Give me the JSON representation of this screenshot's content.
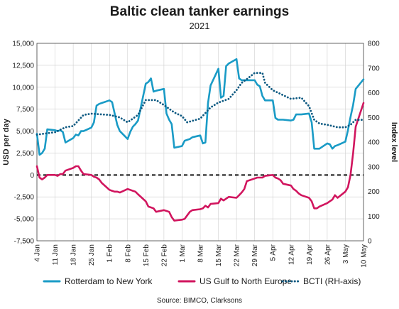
{
  "chart_data": {
    "type": "line",
    "title": "Baltic clean tanker earnings",
    "subtitle": "2021",
    "ylabel_left": "USD per day",
    "ylabel_right": "Index level",
    "ylim_left": [
      -7500,
      15000
    ],
    "yticks_left": [
      -7500,
      -5000,
      -2500,
      0,
      2500,
      5000,
      7500,
      10000,
      12500,
      15000
    ],
    "yticks_left_labels": [
      "-7,500",
      "-5,000",
      "-2,500",
      "0",
      "2,500",
      "5,000",
      "7,500",
      "10,000",
      "12,500",
      "15,000"
    ],
    "ylim_right": [
      0,
      800
    ],
    "yticks_right": [
      0,
      100,
      200,
      300,
      400,
      500,
      600,
      700,
      800
    ],
    "yticks_right_labels": [
      "0",
      "100",
      "200",
      "300",
      "400",
      "500",
      "600",
      "700",
      "800"
    ],
    "x_range": [
      "2021-01-04",
      "2021-05-10"
    ],
    "x_ticks": [
      "2021-01-04",
      "2021-01-11",
      "2021-01-18",
      "2021-01-25",
      "2021-02-01",
      "2021-02-08",
      "2021-02-15",
      "2021-02-22",
      "2021-03-01",
      "2021-03-08",
      "2021-03-15",
      "2021-03-22",
      "2021-03-29",
      "2021-04-05",
      "2021-04-12",
      "2021-04-19",
      "2021-04-26",
      "2021-05-03",
      "2021-05-10"
    ],
    "x_tick_labels": [
      "4 Jan",
      "11 Jan",
      "18 Jan",
      "25 Jan",
      "1 Feb",
      "8 Feb",
      "15 Feb",
      "22 Feb",
      "1 Mar",
      "8 Mar",
      "15 Mar",
      "22 Mar",
      "29 Mar",
      "5 Apr",
      "12 Apr",
      "19 Apr",
      "26 Apr",
      "3 May",
      "10 May"
    ],
    "zero_line": "dashed",
    "legend_position": "bottom",
    "source": "Source: BIMCO, Clarksons",
    "series": [
      {
        "name": "Rotterdam to New York",
        "axis": "left",
        "color": "#1a9bc6",
        "style": "solid",
        "points": [
          [
            "2021-01-04",
            4700
          ],
          [
            "2021-01-05",
            2300
          ],
          [
            "2021-01-06",
            2500
          ],
          [
            "2021-01-07",
            3000
          ],
          [
            "2021-01-08",
            5200
          ],
          [
            "2021-01-11",
            5100
          ],
          [
            "2021-01-12",
            5000
          ],
          [
            "2021-01-13",
            5100
          ],
          [
            "2021-01-14",
            4900
          ],
          [
            "2021-01-15",
            3700
          ],
          [
            "2021-01-18",
            4200
          ],
          [
            "2021-01-19",
            4600
          ],
          [
            "2021-01-20",
            4500
          ],
          [
            "2021-01-21",
            5000
          ],
          [
            "2021-01-22",
            5000
          ],
          [
            "2021-01-25",
            5400
          ],
          [
            "2021-01-26",
            6000
          ],
          [
            "2021-01-27",
            7900
          ],
          [
            "2021-01-28",
            8100
          ],
          [
            "2021-01-29",
            8200
          ],
          [
            "2021-02-01",
            8500
          ],
          [
            "2021-02-02",
            8300
          ],
          [
            "2021-02-03",
            7000
          ],
          [
            "2021-02-04",
            5700
          ],
          [
            "2021-02-05",
            5000
          ],
          [
            "2021-02-08",
            4100
          ],
          [
            "2021-02-09",
            4900
          ],
          [
            "2021-02-10",
            5500
          ],
          [
            "2021-02-11",
            5800
          ],
          [
            "2021-02-12",
            6200
          ],
          [
            "2021-02-15",
            10400
          ],
          [
            "2021-02-16",
            10600
          ],
          [
            "2021-02-17",
            11000
          ],
          [
            "2021-02-18",
            9500
          ],
          [
            "2021-02-19",
            9600
          ],
          [
            "2021-02-22",
            9800
          ],
          [
            "2021-02-23",
            7000
          ],
          [
            "2021-02-24",
            6300
          ],
          [
            "2021-02-25",
            5800
          ],
          [
            "2021-02-26",
            3100
          ],
          [
            "2021-03-01",
            3300
          ],
          [
            "2021-03-02",
            3900
          ],
          [
            "2021-03-03",
            4000
          ],
          [
            "2021-03-04",
            4100
          ],
          [
            "2021-03-05",
            4300
          ],
          [
            "2021-03-08",
            4500
          ],
          [
            "2021-03-09",
            3600
          ],
          [
            "2021-03-10",
            3700
          ],
          [
            "2021-03-11",
            8200
          ],
          [
            "2021-03-12",
            10200
          ],
          [
            "2021-03-15",
            12100
          ],
          [
            "2021-03-16",
            8800
          ],
          [
            "2021-03-17",
            9000
          ],
          [
            "2021-03-18",
            12400
          ],
          [
            "2021-03-19",
            12700
          ],
          [
            "2021-03-22",
            13200
          ],
          [
            "2021-03-23",
            11000
          ],
          [
            "2021-03-24",
            10800
          ],
          [
            "2021-03-25",
            10800
          ],
          [
            "2021-03-26",
            10800
          ],
          [
            "2021-03-29",
            10800
          ],
          [
            "2021-03-30",
            10300
          ],
          [
            "2021-03-31",
            10100
          ],
          [
            "2021-04-01",
            9000
          ],
          [
            "2021-04-02",
            8500
          ],
          [
            "2021-04-05",
            8500
          ],
          [
            "2021-04-06",
            6500
          ],
          [
            "2021-04-07",
            6300
          ],
          [
            "2021-04-08",
            6300
          ],
          [
            "2021-04-09",
            6300
          ],
          [
            "2021-04-12",
            6200
          ],
          [
            "2021-04-13",
            6300
          ],
          [
            "2021-04-14",
            6900
          ],
          [
            "2021-04-15",
            6900
          ],
          [
            "2021-04-16",
            6900
          ],
          [
            "2021-04-19",
            7000
          ],
          [
            "2021-04-20",
            6000
          ],
          [
            "2021-04-21",
            3000
          ],
          [
            "2021-04-22",
            3000
          ],
          [
            "2021-04-23",
            3000
          ],
          [
            "2021-04-26",
            3600
          ],
          [
            "2021-04-27",
            3500
          ],
          [
            "2021-04-28",
            3000
          ],
          [
            "2021-04-29",
            3300
          ],
          [
            "2021-04-30",
            3400
          ],
          [
            "2021-05-03",
            3800
          ],
          [
            "2021-05-04",
            5100
          ],
          [
            "2021-05-05",
            6600
          ],
          [
            "2021-05-06",
            8000
          ],
          [
            "2021-05-07",
            9800
          ],
          [
            "2021-05-10",
            10900
          ]
        ]
      },
      {
        "name": "US Gulf to North Europe",
        "axis": "left",
        "color": "#d1155e",
        "style": "solid",
        "points": [
          [
            "2021-01-04",
            1000
          ],
          [
            "2021-01-05",
            -300
          ],
          [
            "2021-01-06",
            -500
          ],
          [
            "2021-01-07",
            -300
          ],
          [
            "2021-01-08",
            0
          ],
          [
            "2021-01-11",
            0
          ],
          [
            "2021-01-12",
            -100
          ],
          [
            "2021-01-13",
            100
          ],
          [
            "2021-01-14",
            100
          ],
          [
            "2021-01-15",
            500
          ],
          [
            "2021-01-18",
            800
          ],
          [
            "2021-01-19",
            1000
          ],
          [
            "2021-01-20",
            1000
          ],
          [
            "2021-01-21",
            500
          ],
          [
            "2021-01-22",
            100
          ],
          [
            "2021-01-25",
            0
          ],
          [
            "2021-01-26",
            -200
          ],
          [
            "2021-01-27",
            -300
          ],
          [
            "2021-01-28",
            -500
          ],
          [
            "2021-01-29",
            -900
          ],
          [
            "2021-02-01",
            -1700
          ],
          [
            "2021-02-02",
            -1800
          ],
          [
            "2021-02-03",
            -1900
          ],
          [
            "2021-02-04",
            -1900
          ],
          [
            "2021-02-05",
            -2000
          ],
          [
            "2021-02-08",
            -1600
          ],
          [
            "2021-02-09",
            -1700
          ],
          [
            "2021-02-10",
            -1800
          ],
          [
            "2021-02-11",
            -1900
          ],
          [
            "2021-02-12",
            -2200
          ],
          [
            "2021-02-15",
            -3000
          ],
          [
            "2021-02-16",
            -3600
          ],
          [
            "2021-02-17",
            -3700
          ],
          [
            "2021-02-18",
            -3800
          ],
          [
            "2021-02-19",
            -4200
          ],
          [
            "2021-02-22",
            -4000
          ],
          [
            "2021-02-23",
            -4100
          ],
          [
            "2021-02-24",
            -4200
          ],
          [
            "2021-02-25",
            -4800
          ],
          [
            "2021-02-26",
            -5200
          ],
          [
            "2021-03-01",
            -5100
          ],
          [
            "2021-03-02",
            -5000
          ],
          [
            "2021-03-03",
            -4600
          ],
          [
            "2021-03-04",
            -4200
          ],
          [
            "2021-03-05",
            -4000
          ],
          [
            "2021-03-08",
            -3900
          ],
          [
            "2021-03-09",
            -3800
          ],
          [
            "2021-03-10",
            -3500
          ],
          [
            "2021-03-11",
            -3700
          ],
          [
            "2021-03-12",
            -3300
          ],
          [
            "2021-03-15",
            -3200
          ],
          [
            "2021-03-16",
            -2700
          ],
          [
            "2021-03-17",
            -2900
          ],
          [
            "2021-03-18",
            -2700
          ],
          [
            "2021-03-19",
            -2500
          ],
          [
            "2021-03-22",
            -2600
          ],
          [
            "2021-03-23",
            -2300
          ],
          [
            "2021-03-24",
            -2000
          ],
          [
            "2021-03-25",
            -1600
          ],
          [
            "2021-03-26",
            -700
          ],
          [
            "2021-03-29",
            -400
          ],
          [
            "2021-03-30",
            -300
          ],
          [
            "2021-03-31",
            -300
          ],
          [
            "2021-04-01",
            -300
          ],
          [
            "2021-04-02",
            -100
          ],
          [
            "2021-04-05",
            0
          ],
          [
            "2021-04-06",
            -300
          ],
          [
            "2021-04-07",
            -400
          ],
          [
            "2021-04-08",
            -600
          ],
          [
            "2021-04-09",
            -1000
          ],
          [
            "2021-04-12",
            -1200
          ],
          [
            "2021-04-13",
            -1600
          ],
          [
            "2021-04-14",
            -1800
          ],
          [
            "2021-04-15",
            -2100
          ],
          [
            "2021-04-16",
            -2300
          ],
          [
            "2021-04-19",
            -2600
          ],
          [
            "2021-04-20",
            -3000
          ],
          [
            "2021-04-21",
            -3800
          ],
          [
            "2021-04-22",
            -3800
          ],
          [
            "2021-04-23",
            -3600
          ],
          [
            "2021-04-26",
            -3200
          ],
          [
            "2021-04-27",
            -3000
          ],
          [
            "2021-04-28",
            -2800
          ],
          [
            "2021-04-29",
            -2300
          ],
          [
            "2021-04-30",
            -2600
          ],
          [
            "2021-05-03",
            -1900
          ],
          [
            "2021-05-04",
            -1400
          ],
          [
            "2021-05-05",
            0
          ],
          [
            "2021-05-06",
            2500
          ],
          [
            "2021-05-07",
            5500
          ],
          [
            "2021-05-10",
            8200
          ]
        ]
      },
      {
        "name": "BCTI (RH-axis)",
        "axis": "right",
        "color": "#0e5a82",
        "style": "dotted",
        "points": [
          [
            "2021-01-04",
            430
          ],
          [
            "2021-01-11",
            440
          ],
          [
            "2021-01-15",
            460
          ],
          [
            "2021-01-18",
            465
          ],
          [
            "2021-01-22",
            510
          ],
          [
            "2021-01-25",
            515
          ],
          [
            "2021-02-01",
            510
          ],
          [
            "2021-02-05",
            500
          ],
          [
            "2021-02-08",
            480
          ],
          [
            "2021-02-12",
            510
          ],
          [
            "2021-02-15",
            570
          ],
          [
            "2021-02-19",
            570
          ],
          [
            "2021-02-22",
            550
          ],
          [
            "2021-02-26",
            520
          ],
          [
            "2021-03-01",
            505
          ],
          [
            "2021-03-03",
            480
          ],
          [
            "2021-03-08",
            495
          ],
          [
            "2021-03-12",
            540
          ],
          [
            "2021-03-15",
            560
          ],
          [
            "2021-03-19",
            575
          ],
          [
            "2021-03-22",
            610
          ],
          [
            "2021-03-24",
            640
          ],
          [
            "2021-03-26",
            655
          ],
          [
            "2021-03-29",
            680
          ],
          [
            "2021-04-01",
            680
          ],
          [
            "2021-04-02",
            640
          ],
          [
            "2021-04-05",
            610
          ],
          [
            "2021-04-09",
            590
          ],
          [
            "2021-04-12",
            575
          ],
          [
            "2021-04-16",
            580
          ],
          [
            "2021-04-19",
            545
          ],
          [
            "2021-04-21",
            490
          ],
          [
            "2021-04-23",
            475
          ],
          [
            "2021-04-26",
            470
          ],
          [
            "2021-04-30",
            460
          ],
          [
            "2021-05-03",
            460
          ],
          [
            "2021-05-05",
            470
          ],
          [
            "2021-05-07",
            490
          ],
          [
            "2021-05-10",
            490
          ]
        ]
      }
    ]
  }
}
